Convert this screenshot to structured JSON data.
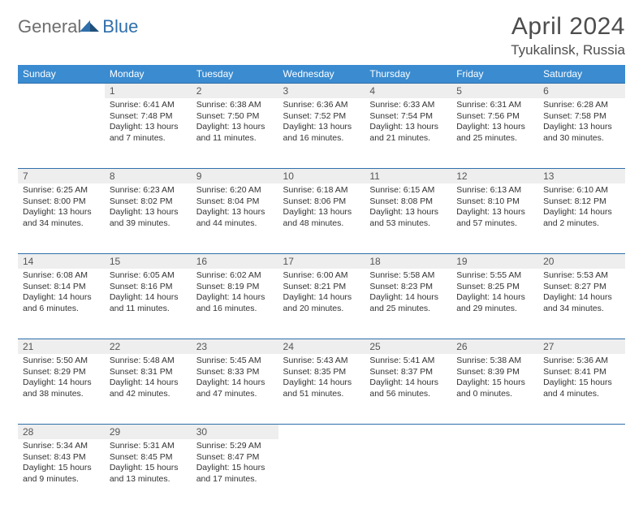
{
  "logo": {
    "general": "General",
    "blue": "Blue"
  },
  "title": "April 2024",
  "location": "Tyukalinsk, Russia",
  "colors": {
    "header_bg": "#3a8bd0",
    "header_text": "#ffffff",
    "daynum_bg": "#eeeeee",
    "rule": "#2f6fab",
    "logo_gray": "#6e6e6e",
    "logo_blue": "#2f6fab",
    "body_text": "#333333"
  },
  "weekdays": [
    "Sunday",
    "Monday",
    "Tuesday",
    "Wednesday",
    "Thursday",
    "Friday",
    "Saturday"
  ],
  "weeks": [
    [
      null,
      {
        "n": "1",
        "sr": "Sunrise: 6:41 AM",
        "ss": "Sunset: 7:48 PM",
        "d1": "Daylight: 13 hours",
        "d2": "and 7 minutes."
      },
      {
        "n": "2",
        "sr": "Sunrise: 6:38 AM",
        "ss": "Sunset: 7:50 PM",
        "d1": "Daylight: 13 hours",
        "d2": "and 11 minutes."
      },
      {
        "n": "3",
        "sr": "Sunrise: 6:36 AM",
        "ss": "Sunset: 7:52 PM",
        "d1": "Daylight: 13 hours",
        "d2": "and 16 minutes."
      },
      {
        "n": "4",
        "sr": "Sunrise: 6:33 AM",
        "ss": "Sunset: 7:54 PM",
        "d1": "Daylight: 13 hours",
        "d2": "and 21 minutes."
      },
      {
        "n": "5",
        "sr": "Sunrise: 6:31 AM",
        "ss": "Sunset: 7:56 PM",
        "d1": "Daylight: 13 hours",
        "d2": "and 25 minutes."
      },
      {
        "n": "6",
        "sr": "Sunrise: 6:28 AM",
        "ss": "Sunset: 7:58 PM",
        "d1": "Daylight: 13 hours",
        "d2": "and 30 minutes."
      }
    ],
    [
      {
        "n": "7",
        "sr": "Sunrise: 6:25 AM",
        "ss": "Sunset: 8:00 PM",
        "d1": "Daylight: 13 hours",
        "d2": "and 34 minutes."
      },
      {
        "n": "8",
        "sr": "Sunrise: 6:23 AM",
        "ss": "Sunset: 8:02 PM",
        "d1": "Daylight: 13 hours",
        "d2": "and 39 minutes."
      },
      {
        "n": "9",
        "sr": "Sunrise: 6:20 AM",
        "ss": "Sunset: 8:04 PM",
        "d1": "Daylight: 13 hours",
        "d2": "and 44 minutes."
      },
      {
        "n": "10",
        "sr": "Sunrise: 6:18 AM",
        "ss": "Sunset: 8:06 PM",
        "d1": "Daylight: 13 hours",
        "d2": "and 48 minutes."
      },
      {
        "n": "11",
        "sr": "Sunrise: 6:15 AM",
        "ss": "Sunset: 8:08 PM",
        "d1": "Daylight: 13 hours",
        "d2": "and 53 minutes."
      },
      {
        "n": "12",
        "sr": "Sunrise: 6:13 AM",
        "ss": "Sunset: 8:10 PM",
        "d1": "Daylight: 13 hours",
        "d2": "and 57 minutes."
      },
      {
        "n": "13",
        "sr": "Sunrise: 6:10 AM",
        "ss": "Sunset: 8:12 PM",
        "d1": "Daylight: 14 hours",
        "d2": "and 2 minutes."
      }
    ],
    [
      {
        "n": "14",
        "sr": "Sunrise: 6:08 AM",
        "ss": "Sunset: 8:14 PM",
        "d1": "Daylight: 14 hours",
        "d2": "and 6 minutes."
      },
      {
        "n": "15",
        "sr": "Sunrise: 6:05 AM",
        "ss": "Sunset: 8:16 PM",
        "d1": "Daylight: 14 hours",
        "d2": "and 11 minutes."
      },
      {
        "n": "16",
        "sr": "Sunrise: 6:02 AM",
        "ss": "Sunset: 8:19 PM",
        "d1": "Daylight: 14 hours",
        "d2": "and 16 minutes."
      },
      {
        "n": "17",
        "sr": "Sunrise: 6:00 AM",
        "ss": "Sunset: 8:21 PM",
        "d1": "Daylight: 14 hours",
        "d2": "and 20 minutes."
      },
      {
        "n": "18",
        "sr": "Sunrise: 5:58 AM",
        "ss": "Sunset: 8:23 PM",
        "d1": "Daylight: 14 hours",
        "d2": "and 25 minutes."
      },
      {
        "n": "19",
        "sr": "Sunrise: 5:55 AM",
        "ss": "Sunset: 8:25 PM",
        "d1": "Daylight: 14 hours",
        "d2": "and 29 minutes."
      },
      {
        "n": "20",
        "sr": "Sunrise: 5:53 AM",
        "ss": "Sunset: 8:27 PM",
        "d1": "Daylight: 14 hours",
        "d2": "and 34 minutes."
      }
    ],
    [
      {
        "n": "21",
        "sr": "Sunrise: 5:50 AM",
        "ss": "Sunset: 8:29 PM",
        "d1": "Daylight: 14 hours",
        "d2": "and 38 minutes."
      },
      {
        "n": "22",
        "sr": "Sunrise: 5:48 AM",
        "ss": "Sunset: 8:31 PM",
        "d1": "Daylight: 14 hours",
        "d2": "and 42 minutes."
      },
      {
        "n": "23",
        "sr": "Sunrise: 5:45 AM",
        "ss": "Sunset: 8:33 PM",
        "d1": "Daylight: 14 hours",
        "d2": "and 47 minutes."
      },
      {
        "n": "24",
        "sr": "Sunrise: 5:43 AM",
        "ss": "Sunset: 8:35 PM",
        "d1": "Daylight: 14 hours",
        "d2": "and 51 minutes."
      },
      {
        "n": "25",
        "sr": "Sunrise: 5:41 AM",
        "ss": "Sunset: 8:37 PM",
        "d1": "Daylight: 14 hours",
        "d2": "and 56 minutes."
      },
      {
        "n": "26",
        "sr": "Sunrise: 5:38 AM",
        "ss": "Sunset: 8:39 PM",
        "d1": "Daylight: 15 hours",
        "d2": "and 0 minutes."
      },
      {
        "n": "27",
        "sr": "Sunrise: 5:36 AM",
        "ss": "Sunset: 8:41 PM",
        "d1": "Daylight: 15 hours",
        "d2": "and 4 minutes."
      }
    ],
    [
      {
        "n": "28",
        "sr": "Sunrise: 5:34 AM",
        "ss": "Sunset: 8:43 PM",
        "d1": "Daylight: 15 hours",
        "d2": "and 9 minutes."
      },
      {
        "n": "29",
        "sr": "Sunrise: 5:31 AM",
        "ss": "Sunset: 8:45 PM",
        "d1": "Daylight: 15 hours",
        "d2": "and 13 minutes."
      },
      {
        "n": "30",
        "sr": "Sunrise: 5:29 AM",
        "ss": "Sunset: 8:47 PM",
        "d1": "Daylight: 15 hours",
        "d2": "and 17 minutes."
      },
      null,
      null,
      null,
      null
    ]
  ]
}
